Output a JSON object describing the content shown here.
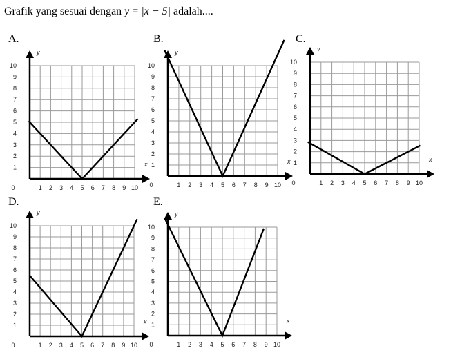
{
  "question": {
    "prefix": "Grafik yang sesuai dengan ",
    "var_y": "y",
    "equals": " = ",
    "abs_expr": "|x − 5|",
    "suffix": " adalah...."
  },
  "options": [
    {
      "label": "A.",
      "function": "y = |x - 5| (slope 1)",
      "vertex": [
        5,
        0
      ],
      "left_slope": -1,
      "right_slope": 1,
      "x_range": [
        -0.1,
        10.3
      ]
    },
    {
      "label": "B.",
      "function": "steep V, vertex (5,0)",
      "vertex": [
        5,
        0
      ],
      "left_slope": -2.15,
      "right_slope": 2.2,
      "x_range": [
        -0.3,
        10.6
      ]
    },
    {
      "label": "C.",
      "function": "shallow V, vertex (5,0)",
      "vertex": [
        5,
        0
      ],
      "left_slope": -0.55,
      "right_slope": 0.5,
      "x_range": [
        -0.2,
        10.1
      ]
    },
    {
      "label": "D.",
      "function": "vertex (5,0), right steep",
      "vertex": [
        5,
        0
      ],
      "left_slope": -1.1,
      "right_slope": 2.0,
      "x_range": [
        0,
        10.3
      ]
    },
    {
      "label": "E.",
      "function": "vertex (5,0), right steep",
      "vertex": [
        5,
        0
      ],
      "left_slope": -2.05,
      "right_slope": 2.6,
      "x_range": [
        -0.2,
        8.8
      ]
    }
  ],
  "axes": {
    "x_name": "x",
    "y_name": "y",
    "ticks": [
      "1",
      "2",
      "3",
      "4",
      "5",
      "6",
      "7",
      "8",
      "9",
      "10"
    ],
    "origin": "0"
  },
  "chart_data": [
    {
      "type": "line",
      "label": "A.",
      "x": [
        0,
        5,
        10
      ],
      "y": [
        5,
        0,
        5
      ],
      "xlim": [
        0,
        10
      ],
      "ylim": [
        0,
        10
      ],
      "xlabel": "x",
      "ylabel": "y",
      "grid": true
    },
    {
      "type": "line",
      "label": "B.",
      "x": [
        0,
        5,
        10
      ],
      "y": [
        10.7,
        0,
        11
      ],
      "xlim": [
        0,
        10
      ],
      "ylim": [
        0,
        10
      ],
      "xlabel": "x",
      "ylabel": "y",
      "grid": true
    },
    {
      "type": "line",
      "label": "C.",
      "x": [
        0,
        5,
        10
      ],
      "y": [
        2.7,
        0,
        2.5
      ],
      "xlim": [
        0,
        10
      ],
      "ylim": [
        0,
        10
      ],
      "xlabel": "x",
      "ylabel": "y",
      "grid": true
    },
    {
      "type": "line",
      "label": "D.",
      "x": [
        0,
        5,
        10
      ],
      "y": [
        5.5,
        0,
        10
      ],
      "xlim": [
        0,
        10
      ],
      "ylim": [
        0,
        10
      ],
      "xlabel": "x",
      "ylabel": "y",
      "grid": true
    },
    {
      "type": "line",
      "label": "E.",
      "x": [
        0,
        5,
        8.8
      ],
      "y": [
        10.2,
        0,
        10
      ],
      "xlim": [
        0,
        10
      ],
      "ylim": [
        0,
        10
      ],
      "xlabel": "x",
      "ylabel": "y",
      "grid": true
    }
  ]
}
